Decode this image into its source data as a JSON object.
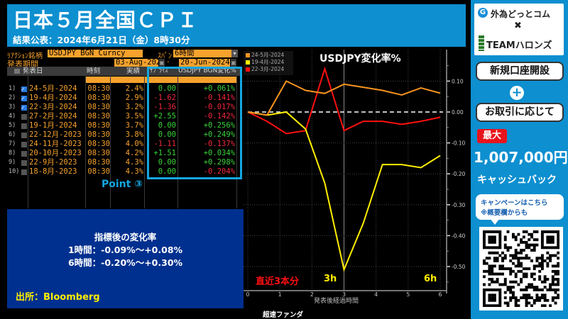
{
  "header": {
    "title": "日本５月全国ＣＰＩ",
    "subtitle": "結果公表：2024年6月21日（金）8時30分"
  },
  "terminal": {
    "reaction_label": "ﾘｱｸｼｮﾝ銘柄",
    "reaction_value": "USDJPY BGN Curncy",
    "span_label": "ｽﾊﾟﾝ",
    "span_value": "6時間",
    "period_label": "発表期間",
    "period_from": "03-Aug-2023",
    "period_sep": "-",
    "period_to": "20-Jun-2024",
    "columns": [
      "発表日",
      "時刻",
      "実績",
      "ｻﾌﾟﾗｲｽﾞ",
      "USDJPY BGN変化%"
    ],
    "rows": [
      {
        "idx": "1)",
        "checked": true,
        "date": "24-5月-2024",
        "time": "08:30",
        "actual": "2.4%",
        "surprise": "0.00",
        "surprise_sign": "pos",
        "change": "+0.061%",
        "change_sign": "pos"
      },
      {
        "idx": "2)",
        "checked": true,
        "date": "19-4月-2024",
        "time": "08:30",
        "actual": "2.9%",
        "surprise": "-1.62",
        "surprise_sign": "neg",
        "change": "-0.141%",
        "change_sign": "neg"
      },
      {
        "idx": "3)",
        "checked": true,
        "date": "22-3月-2024",
        "time": "08:30",
        "actual": "3.2%",
        "surprise": "-1.36",
        "surprise_sign": "neg",
        "change": "-0.017%",
        "change_sign": "neg"
      },
      {
        "idx": "4)",
        "checked": false,
        "date": "27-2月-2024",
        "time": "08:30",
        "actual": "3.5%",
        "surprise": "+2.55",
        "surprise_sign": "pos",
        "change": "-0.142%",
        "change_sign": "neg"
      },
      {
        "idx": "5)",
        "checked": false,
        "date": "19-1月-2024",
        "time": "08:30",
        "actual": "3.7%",
        "surprise": "0.00",
        "surprise_sign": "pos",
        "change": "+0.256%",
        "change_sign": "pos"
      },
      {
        "idx": "6)",
        "checked": false,
        "date": "22-12月-2023",
        "time": "08:30",
        "actual": "3.8%",
        "surprise": "0.00",
        "surprise_sign": "pos",
        "change": "+0.249%",
        "change_sign": "pos"
      },
      {
        "idx": "7)",
        "checked": false,
        "date": "24-11月-2023",
        "time": "08:30",
        "actual": "4.0%",
        "surprise": "-1.11",
        "surprise_sign": "neg",
        "change": "-0.137%",
        "change_sign": "neg"
      },
      {
        "idx": "8)",
        "checked": false,
        "date": "20-10月-2023",
        "time": "08:30",
        "actual": "4.2%",
        "surprise": "+1.51",
        "surprise_sign": "pos",
        "change": "+0.034%",
        "change_sign": "pos"
      },
      {
        "idx": "9)",
        "checked": false,
        "date": "22-9月-2023",
        "time": "08:30",
        "actual": "4.3%",
        "surprise": "0.00",
        "surprise_sign": "pos",
        "change": "+0.298%",
        "change_sign": "pos"
      },
      {
        "idx": "10)",
        "checked": false,
        "date": "18-8月-2023",
        "time": "08:30",
        "actual": "4.3%",
        "surprise": "0.00",
        "surprise_sign": "pos",
        "change": "-0.204%",
        "change_sign": "neg"
      }
    ],
    "point_label": "Point ③"
  },
  "info": {
    "heading": "指標後の変化率",
    "line1": "1時間：-0.09%～+0.08%",
    "line2": "6時間：-0.20%～+0.30%",
    "source": "出所：Bloomberg"
  },
  "channel": "超速ファンダ",
  "chart_annotations": {
    "recent": "直近3本分",
    "h3": "3h",
    "h6": "6h"
  },
  "chart_data": {
    "type": "line",
    "title": "USDJPY変化率%",
    "xlabel": "発表後経過時間",
    "ylabel": "",
    "x": [
      0,
      0.6,
      1.2,
      1.8,
      2.4,
      3.0,
      3.6,
      4.2,
      4.8,
      5.4,
      6.0
    ],
    "xticks": [
      "0",
      "1",
      "2",
      "3",
      "4",
      "5",
      "6"
    ],
    "yticks": [
      "0.10",
      "0.00",
      "-0.10",
      "-0.20",
      "-0.30",
      "-0.40",
      "-0.50"
    ],
    "xlim": [
      0,
      6
    ],
    "ylim": [
      -0.56,
      0.2
    ],
    "grid": true,
    "legend_position": "top-left",
    "zero_line": "dashed white",
    "series": [
      {
        "name": "24-5月-2024",
        "color": "#f7931e",
        "values": [
          0.0,
          -0.01,
          0.1,
          0.07,
          0.06,
          0.09,
          0.08,
          0.07,
          0.055,
          0.078,
          0.061
        ]
      },
      {
        "name": "19-4月-2024",
        "color": "#ffee00",
        "values": [
          0.0,
          -0.01,
          0.0,
          -0.055,
          -0.23,
          -0.51,
          -0.36,
          -0.17,
          -0.17,
          -0.18,
          -0.141
        ]
      },
      {
        "name": "22-3月-2024",
        "color": "#ff1010",
        "values": [
          0.0,
          -0.03,
          -0.07,
          -0.06,
          0.14,
          -0.06,
          -0.03,
          -0.03,
          -0.04,
          -0.03,
          -0.017
        ]
      }
    ]
  },
  "ad": {
    "brand1": "外為どっとコム",
    "cross": "✖",
    "brand2": "TEAMハロンズ",
    "open_account": "新規口座開設",
    "plus": "+",
    "trade_based": "お取引に応じて",
    "max": "最大",
    "amount": "1,007,000円",
    "cashback": "キャッシュバック",
    "bubble1": "キャンペーンはこちら",
    "bubble2": "※概要欄からも"
  }
}
